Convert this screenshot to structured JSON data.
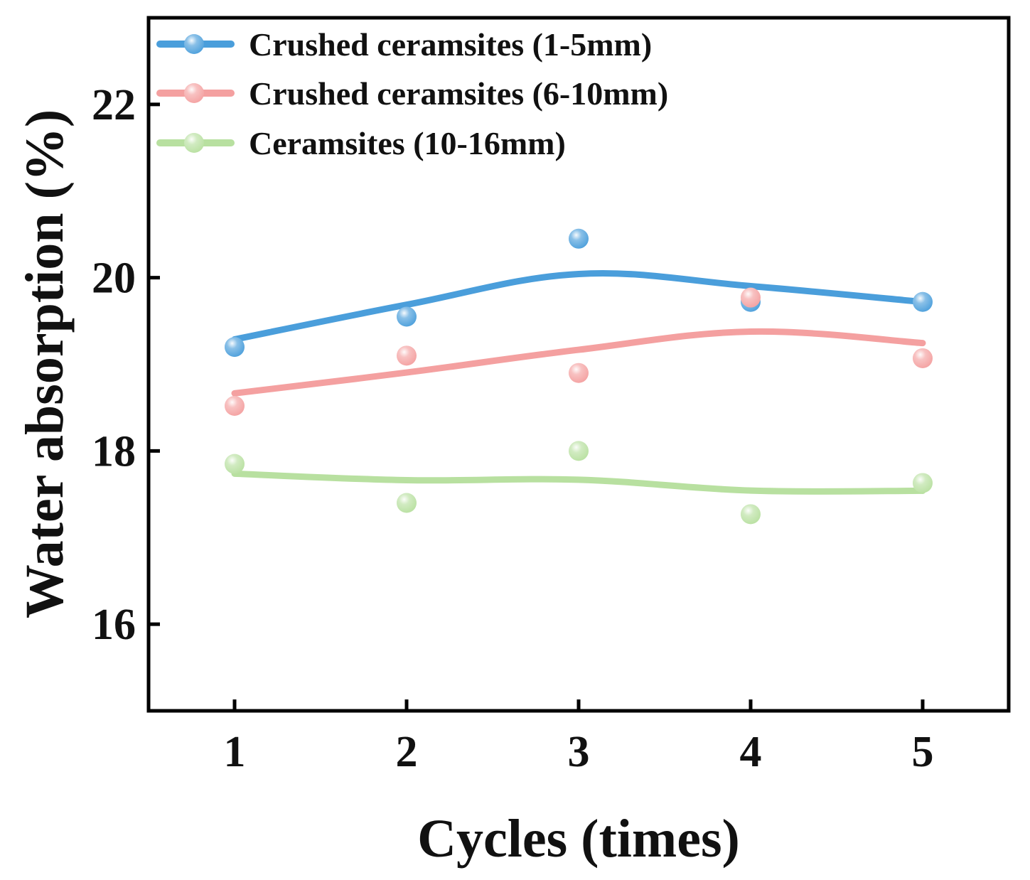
{
  "chart_data": {
    "type": "line",
    "title": "",
    "xlabel": "Cycles (times)",
    "ylabel": "Water absorption (%)",
    "x": [
      1,
      2,
      3,
      4,
      5
    ],
    "xlim": [
      0.5,
      5.5
    ],
    "ylim": [
      15,
      23
    ],
    "xticks": [
      1,
      2,
      3,
      4,
      5
    ],
    "yticks": [
      16,
      18,
      20,
      22
    ],
    "grid": false,
    "legend_position": "top-left",
    "series": [
      {
        "name": "Crushed ceramsites (1-5mm)",
        "color": "#4a9edb",
        "values": [
          19.2,
          19.55,
          20.45,
          19.72,
          19.72
        ]
      },
      {
        "name": "Crushed ceramsites (6-10mm)",
        "color": "#f4a0a0",
        "values": [
          18.52,
          19.1,
          18.9,
          19.77,
          19.07
        ]
      },
      {
        "name": "Ceramsites (10-16mm)",
        "color": "#b8e0a0",
        "values": [
          17.85,
          17.4,
          18.0,
          17.27,
          17.63
        ]
      }
    ]
  }
}
